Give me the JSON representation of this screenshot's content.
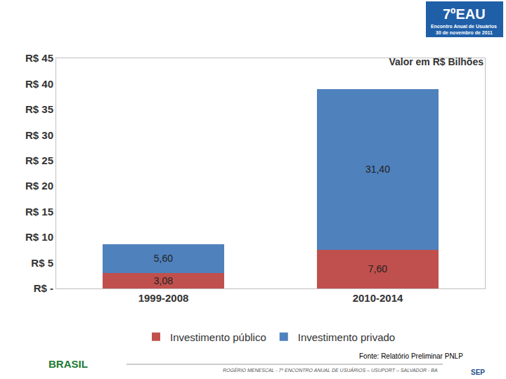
{
  "chart_data": {
    "type": "bar",
    "title": "Valor em R$ Bilhões",
    "categories": [
      "1999-2008",
      "2010-2014"
    ],
    "series": [
      {
        "name": "Investimento público",
        "color": "#c0504d",
        "values": [
          3.08,
          7.6
        ],
        "value_labels": [
          "3,08",
          "7,60"
        ]
      },
      {
        "name": "Investimento privado",
        "color": "#4f81bd",
        "values": [
          5.6,
          31.4
        ],
        "value_labels": [
          "5,60",
          "31,40"
        ]
      }
    ],
    "ylim": [
      0,
      45
    ],
    "yticks": [
      {
        "value": 0,
        "label": "R$ -"
      },
      {
        "value": 5,
        "label": "R$ 5"
      },
      {
        "value": 10,
        "label": "R$ 10"
      },
      {
        "value": 15,
        "label": "R$ 15"
      },
      {
        "value": 20,
        "label": "R$ 20"
      },
      {
        "value": 25,
        "label": "R$ 25"
      },
      {
        "value": 30,
        "label": "R$ 30"
      },
      {
        "value": 35,
        "label": "R$ 35"
      },
      {
        "value": 40,
        "label": "R$ 40"
      },
      {
        "value": 45,
        "label": "R$ 45"
      }
    ],
    "stacked": true,
    "data_labels": true,
    "grid": false,
    "legend": "bottom",
    "annotations": [
      "7ºEAU",
      "Encontro Anual de Usuários",
      "30 de novembro de 2011",
      "Fonte: Relatório Preliminar PNLP",
      "ROGÉRIO MENESCAL - 7º ENCONTRO ANUAL DE USUÁRIOS – USUPORT – SALVADOR - BA",
      "BRASIL",
      "SEP"
    ]
  }
}
